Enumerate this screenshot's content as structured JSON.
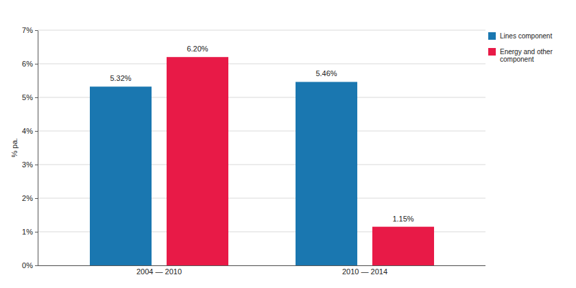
{
  "chart_data": {
    "type": "bar",
    "y_label": "% pa.",
    "categories": [
      "2004 — 2010",
      "2010 — 2014"
    ],
    "series": [
      {
        "name": "Lines component",
        "color": "#1a77b0",
        "values": [
          5.32,
          5.46
        ],
        "value_labels": [
          "5.32%",
          "5.46%"
        ]
      },
      {
        "name": "Energy and other component",
        "color": "#e81a47",
        "values": [
          6.2,
          1.15
        ],
        "value_labels": [
          "6.20%",
          "1.15%"
        ]
      }
    ],
    "ylim": [
      0,
      7
    ],
    "yticks": [
      {
        "value": 0,
        "label": "0%"
      },
      {
        "value": 1,
        "label": "1%"
      },
      {
        "value": 2,
        "label": "2%"
      },
      {
        "value": 3,
        "label": "3%"
      },
      {
        "value": 4,
        "label": "4%"
      },
      {
        "value": 5,
        "label": "5%"
      },
      {
        "value": 6,
        "label": "6%"
      },
      {
        "value": 7,
        "label": "7%"
      }
    ],
    "grid": true,
    "legend": "top-right",
    "data_labels": true
  }
}
